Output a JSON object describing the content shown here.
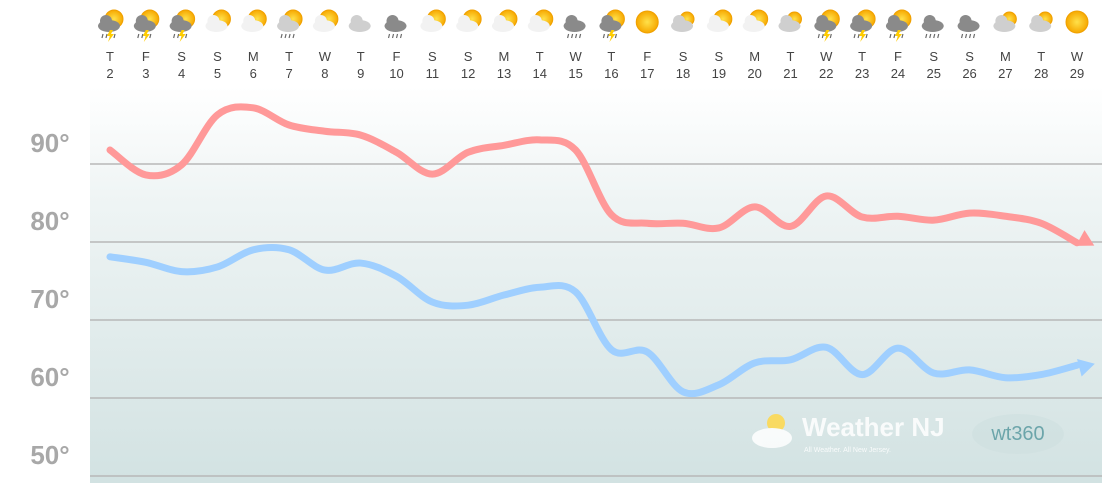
{
  "chart_data": {
    "type": "line",
    "weekdays": [
      "T",
      "F",
      "S",
      "S",
      "M",
      "T",
      "W",
      "T",
      "F",
      "S",
      "S",
      "M",
      "T",
      "W",
      "T",
      "F",
      "S",
      "S",
      "M",
      "T",
      "W",
      "T",
      "F",
      "S",
      "S",
      "M",
      "T",
      "W"
    ],
    "categories": [
      "2",
      "3",
      "4",
      "5",
      "6",
      "7",
      "8",
      "9",
      "10",
      "11",
      "12",
      "13",
      "14",
      "15",
      "16",
      "17",
      "18",
      "19",
      "20",
      "21",
      "22",
      "23",
      "24",
      "25",
      "26",
      "27",
      "28",
      "29"
    ],
    "series": [
      {
        "color": "#ff9999",
        "values": [
          91.8,
          88.6,
          89.9,
          96.3,
          97.2,
          95,
          94.2,
          93.7,
          91.5,
          88.7,
          91.5,
          92.4,
          93.1,
          91.8,
          83.5,
          82.4,
          82.4,
          81.8,
          84.5,
          82,
          85.9,
          83.2,
          83.3,
          82.8,
          83.7,
          83.3,
          82.4,
          79.9
        ]
      },
      {
        "color": "#9fcfff",
        "values": [
          78.1,
          77.4,
          76.2,
          76.8,
          79,
          79,
          76.4,
          77.3,
          75.6,
          72.3,
          71.9,
          73.2,
          74.2,
          73.6,
          66.2,
          65.9,
          60.8,
          61.7,
          64.5,
          64.9,
          66.5,
          63,
          66.4,
          63.2,
          63.6,
          62.6,
          63,
          64.2
        ]
      }
    ],
    "ylim": [
      50,
      100
    ],
    "yticks": [
      {
        "value": 50,
        "label": "50°"
      },
      {
        "value": 60,
        "label": "60°"
      },
      {
        "value": 70,
        "label": "70°"
      },
      {
        "value": 80,
        "label": "80°"
      },
      {
        "value": 90,
        "label": "90°"
      }
    ],
    "grid": true,
    "watermark": {
      "brand": "Weather NJ",
      "tagline": "All Weather. All New Jersey.",
      "partner": "wt360"
    }
  }
}
